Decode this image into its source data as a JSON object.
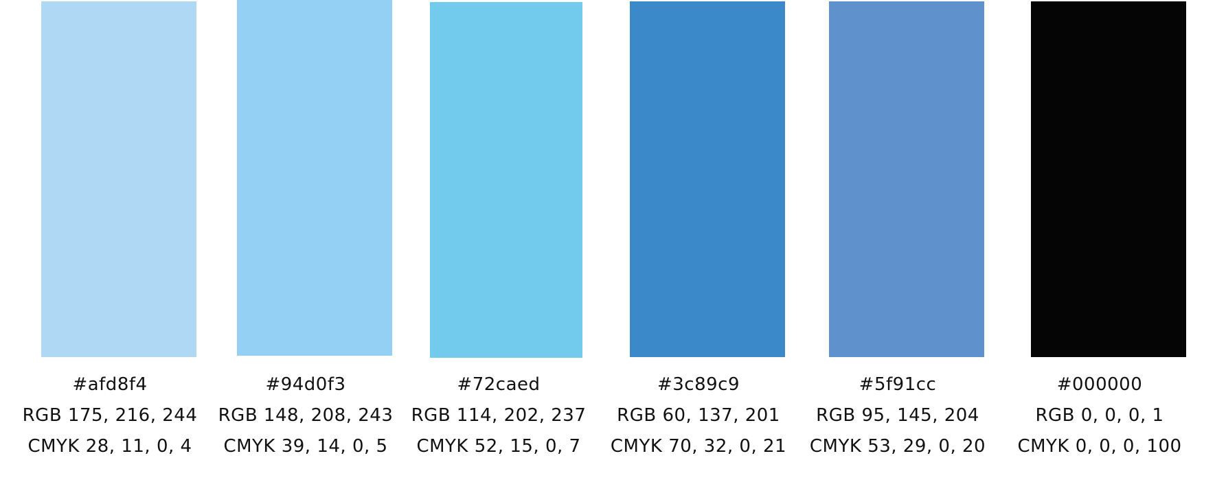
{
  "swatches": [
    {
      "hex": "#afd8f4",
      "rgb": "RGB 175, 216, 244",
      "cmyk": "CMYK 28, 11, 0, 4"
    },
    {
      "hex": "#94d0f3",
      "rgb": "RGB 148, 208, 243",
      "cmyk": "CMYK 39, 14, 0, 5"
    },
    {
      "hex": "#72caed",
      "rgb": "RGB 114, 202, 237",
      "cmyk": "CMYK 52, 15, 0, 7"
    },
    {
      "hex": "#3c89c9",
      "rgb": "RGB 60, 137, 201",
      "cmyk": "CMYK 70, 32, 0, 21"
    },
    {
      "hex": "#5f91cc",
      "rgb": "RGB 95, 145, 204",
      "cmyk": "CMYK 53, 29, 0, 20"
    },
    {
      "hex": "#000000",
      "rgb": "RGB 0, 0, 0, 1",
      "cmyk": "CMYK 0, 0, 0, 100"
    }
  ],
  "colors": {
    "swatch_fills": [
      "#afd8f4",
      "#94d0f3",
      "#72caed",
      "#3c89c9",
      "#5f91cc",
      "#050505"
    ]
  }
}
